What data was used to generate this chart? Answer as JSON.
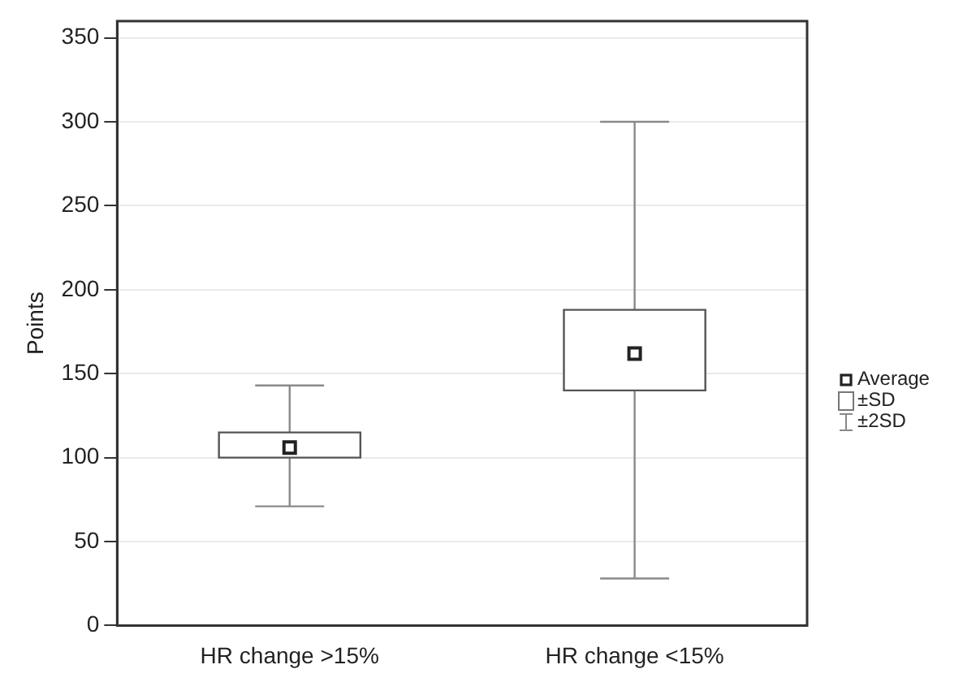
{
  "chart_data": {
    "type": "box",
    "ylabel": "Points",
    "categories": [
      "HR change >15%",
      "HR change <15%"
    ],
    "boxes": [
      {
        "low": 71,
        "q1": 100,
        "q3": 115,
        "high": 143,
        "mean": 106
      },
      {
        "low": 28,
        "q1": 140,
        "q3": 188,
        "high": 300,
        "mean": 162
      }
    ],
    "ylim": [
      0,
      360
    ],
    "yticks": [
      0,
      50,
      100,
      150,
      200,
      250,
      300,
      350
    ],
    "grid": "y",
    "annotations": [
      "Average",
      "±SD",
      "±2SD"
    ]
  }
}
